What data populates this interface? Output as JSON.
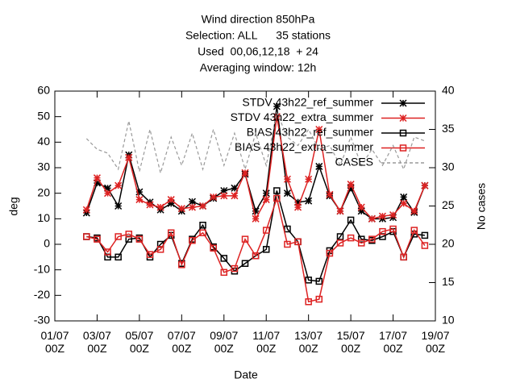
{
  "chart_data": {
    "type": "line",
    "title": [
      "Wind direction 850hPa",
      "Selection: ALL      35 stations",
      "Used  00,06,12,18  + 24",
      "Averaging window: 12h"
    ],
    "xlabel": "Date",
    "ylabel": "deg",
    "y2label": "No cases",
    "x": [
      1.5,
      2,
      2.5,
      3,
      3.5,
      4,
      4.5,
      5,
      5.5,
      6,
      6.5,
      7,
      7.5,
      8,
      8.5,
      9,
      9.5,
      10,
      10.5,
      11,
      11.5,
      12,
      12.5,
      13,
      13.5,
      14,
      14.5,
      15,
      15.5,
      16,
      16.5,
      17,
      17.5
    ],
    "xlim": [
      0,
      18
    ],
    "xticks": [
      {
        "value": 0,
        "label": "01/07\n00Z"
      },
      {
        "value": 2,
        "label": "03/07\n00Z"
      },
      {
        "value": 4,
        "label": "05/07\n00Z"
      },
      {
        "value": 6,
        "label": "07/07\n00Z"
      },
      {
        "value": 8,
        "label": "09/07\n00Z"
      },
      {
        "value": 10,
        "label": "11/07\n00Z"
      },
      {
        "value": 12,
        "label": "13/07\n00Z"
      },
      {
        "value": 14,
        "label": "15/07\n00Z"
      },
      {
        "value": 16,
        "label": "17/07\n00Z"
      },
      {
        "value": 18,
        "label": "19/07\n00Z"
      }
    ],
    "ylim": [
      -30,
      60
    ],
    "yticks": [
      -30,
      -20,
      -10,
      0,
      10,
      20,
      30,
      40,
      50,
      60
    ],
    "y2lim": [
      10,
      40
    ],
    "y2ticks": [
      10,
      15,
      20,
      25,
      30,
      35,
      40
    ],
    "legend": "top-right",
    "series": [
      {
        "name": "STDV 43h22_ref_summer",
        "color": "#000000",
        "marker": "asterisk",
        "values": [
          12.3,
          24,
          22,
          15,
          35,
          20.5,
          16.5,
          13.5,
          16,
          13,
          16.7,
          15,
          18,
          21,
          22,
          27.5,
          13,
          20,
          54,
          20,
          16.5,
          17,
          30.5,
          19,
          13,
          22,
          13,
          10,
          10,
          10.5,
          18.5,
          12.5,
          23
        ]
      },
      {
        "name": "STDV 43h22_extra_summer",
        "color": "#dd2222",
        "marker": "asterisk",
        "values": [
          13.5,
          26,
          20,
          23,
          34,
          17.5,
          15.5,
          14.5,
          17.5,
          14,
          14.5,
          15,
          18.5,
          19,
          19,
          28,
          10,
          17.5,
          50,
          25.5,
          14.5,
          25.5,
          45,
          19.5,
          13,
          23.5,
          14.5,
          10,
          11,
          11.5,
          16,
          13,
          23
        ]
      },
      {
        "name": "BIAS 43h22_ref_summer",
        "color": "#000000",
        "marker": "square",
        "values": [
          3,
          2.5,
          -5,
          -5,
          2,
          2.5,
          -5,
          0,
          3.5,
          -7.5,
          2,
          7.5,
          -1,
          -5.5,
          -10.5,
          -7.5,
          -4.5,
          -2,
          21,
          6,
          1,
          -14,
          -14.5,
          -2.5,
          3,
          9.5,
          2,
          1.5,
          3,
          5,
          -5,
          4,
          3.5
        ]
      },
      {
        "name": "BIAS 43h22_extra_summer",
        "color": "#dd2222",
        "marker": "square",
        "values": [
          3,
          2,
          -3,
          3,
          4,
          2,
          -4,
          -2,
          4.5,
          -8,
          1.5,
          4.5,
          -1.5,
          -11,
          -9.5,
          2,
          -4.5,
          5.5,
          18,
          0,
          1,
          -22.5,
          -21.5,
          -3.5,
          0.5,
          2.5,
          0.5,
          2,
          5,
          6,
          -5,
          5.5,
          -0.5
        ]
      },
      {
        "name": "CASES",
        "color": "#999999",
        "marker": "none",
        "dash": true,
        "axis": "y2",
        "values": [
          33.8,
          32.4,
          31.9,
          29.8,
          36.1,
          29.5,
          35,
          29.3,
          34,
          30.3,
          34.5,
          29.8,
          35,
          30.3,
          34.5,
          29.8,
          34.5,
          30.3,
          37.2,
          34,
          32.9,
          35,
          32.4,
          32.9,
          30.3,
          34,
          30.3,
          32.4,
          30.3,
          32.9,
          29.8,
          34,
          33.5
        ]
      }
    ]
  }
}
